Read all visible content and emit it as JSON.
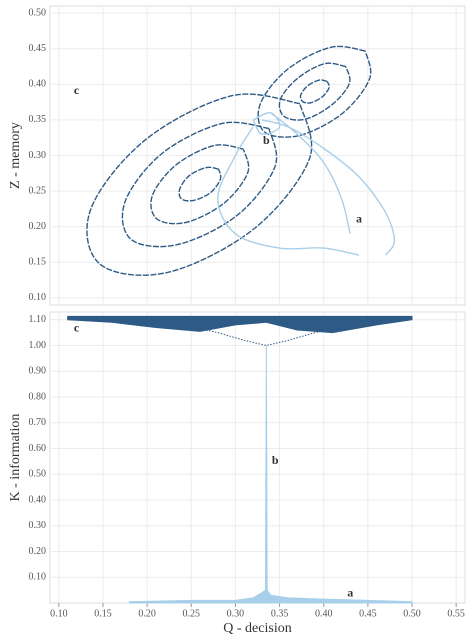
{
  "chart_data": [
    {
      "type": "line",
      "ylabel": "Z - memory",
      "xlim": [
        0.09,
        0.56
      ],
      "ylim": [
        0.09,
        0.51
      ],
      "yticks": [
        {
          "value": 0.1,
          "label": "0.10"
        },
        0.15,
        {
          "value": 0.2,
          "label": "0.20"
        },
        0.25,
        {
          "value": 0.3,
          "label": "0.30"
        },
        0.35,
        {
          "value": 0.4,
          "label": "0.40"
        },
        0.45,
        {
          "value": 0.5,
          "label": "0.50"
        }
      ],
      "grid": true,
      "series": [
        {
          "color": "#2e5b86",
          "style": "dashed",
          "x": [
            0.281,
            0.267,
            0.248,
            0.237,
            0.239,
            0.253,
            0.272,
            0.283,
            0.281,
            null,
            0.309,
            0.276,
            0.233,
            0.206,
            0.211,
            0.244,
            0.287,
            0.314,
            0.309,
            null,
            0.338,
            0.285,
            0.217,
            0.175,
            0.182,
            0.235,
            0.303,
            0.345,
            0.338,
            null,
            0.373,
            0.296,
            0.198,
            0.136,
            0.147,
            0.224,
            0.322,
            0.384,
            0.373,
            null,
            0.404,
            0.395,
            0.382,
            0.374,
            0.376,
            0.385,
            0.398,
            0.406,
            0.404,
            null,
            0.425,
            0.401,
            0.371,
            0.351,
            0.355,
            0.379,
            0.409,
            0.429,
            0.425,
            null,
            0.447,
            0.408,
            0.359,
            0.328,
            0.333,
            0.372,
            0.421,
            0.452,
            0.447
          ],
          "values": [
            0.281,
            0.283,
            0.272,
            0.253,
            0.239,
            0.237,
            0.248,
            0.267,
            0.281,
            null,
            0.309,
            0.314,
            0.287,
            0.244,
            0.211,
            0.206,
            0.233,
            0.276,
            0.309,
            null,
            0.338,
            0.345,
            0.303,
            0.235,
            0.182,
            0.175,
            0.217,
            0.285,
            0.338,
            null,
            0.373,
            0.384,
            0.322,
            0.224,
            0.147,
            0.136,
            0.198,
            0.296,
            0.373,
            null,
            0.404,
            0.406,
            0.398,
            0.385,
            0.376,
            0.374,
            0.382,
            0.395,
            0.404,
            null,
            0.425,
            0.429,
            0.409,
            0.379,
            0.355,
            0.351,
            0.371,
            0.401,
            0.425,
            null,
            0.447,
            0.452,
            0.421,
            0.372,
            0.333,
            0.328,
            0.359,
            0.408,
            0.447
          ]
        },
        {
          "color": "#a8cfe9",
          "style": "solid",
          "x": [
            0.33,
            0.36,
            0.4,
            0.44,
            0.47,
            0.48,
            0.47,
            null,
            0.32,
            0.3,
            0.28,
            0.3,
            0.35,
            0.4,
            0.44,
            null,
            0.34,
            0.37,
            0.4,
            0.42,
            0.43,
            null,
            0.32,
            0.34,
            0.35,
            0.33,
            0.32
          ],
          "values": [
            0.35,
            0.34,
            0.31,
            0.27,
            0.22,
            0.18,
            0.16,
            null,
            0.34,
            0.3,
            0.24,
            0.19,
            0.17,
            0.17,
            0.16,
            null,
            0.36,
            0.33,
            0.29,
            0.24,
            0.19,
            null,
            0.35,
            0.36,
            0.34,
            0.33,
            0.35
          ]
        }
      ],
      "annotations": [
        {
          "text": "c",
          "x": 0.12,
          "y": 0.39
        },
        {
          "text": "b",
          "x": 0.335,
          "y": 0.32
        },
        {
          "text": "a",
          "x": 0.44,
          "y": 0.21
        }
      ]
    },
    {
      "type": "line",
      "xlabel": "Q - decision",
      "ylabel": "K - information",
      "xlim": [
        0.09,
        0.56
      ],
      "ylim": [
        0,
        1.13
      ],
      "xticks": [
        {
          "value": 0.1,
          "label": "0.10"
        },
        0.15,
        {
          "value": 0.2,
          "label": "0.20"
        },
        0.25,
        {
          "value": 0.3,
          "label": "0.30"
        },
        0.35,
        {
          "value": 0.4,
          "label": "0.40"
        },
        0.45,
        {
          "value": 0.5,
          "label": "0.50"
        },
        0.55
      ],
      "yticks": [
        {
          "value": 0.1,
          "label": "0.10"
        },
        {
          "value": 0.2,
          "label": "0.20"
        },
        {
          "value": 0.3,
          "label": "0.30"
        },
        {
          "value": 0.4,
          "label": "0.40"
        },
        {
          "value": 0.5,
          "label": "0.50"
        },
        {
          "value": 0.6,
          "label": "0.60"
        },
        {
          "value": 0.7,
          "label": "0.70"
        },
        {
          "value": 0.8,
          "label": "0.80"
        },
        {
          "value": 0.9,
          "label": "0.90"
        },
        {
          "value": 1.0,
          "label": "1.00"
        },
        {
          "value": 1.1,
          "label": "1.10"
        }
      ],
      "grid": true,
      "series": [
        {
          "color": "#2e5b86",
          "style": "solid",
          "x": [
            0.11,
            0.16,
            0.21,
            0.26,
            0.3,
            0.335,
            0.37,
            0.41,
            0.46,
            0.5
          ],
          "values": [
            1.112,
            1.112,
            1.112,
            1.112,
            1.112,
            1.112,
            1.112,
            1.112,
            1.112,
            1.112
          ]
        },
        {
          "color": "#2e5b86",
          "style": "band",
          "x": [
            0.11,
            0.16,
            0.21,
            0.26,
            0.3,
            0.335,
            0.37,
            0.41,
            0.46,
            0.5
          ],
          "values": [
            1.1,
            1.09,
            1.07,
            1.055,
            1.08,
            1.09,
            1.06,
            1.05,
            1.08,
            1.1
          ]
        },
        {
          "color": "#2e5b86",
          "style": "dotted",
          "x": [
            0.2,
            0.24,
            0.28,
            0.31,
            0.335,
            0.36,
            0.39,
            0.43,
            0.47
          ],
          "values": [
            1.1,
            1.08,
            1.05,
            1.02,
            1.0,
            1.02,
            1.05,
            1.08,
            1.1
          ]
        },
        {
          "color": "#a8cfe9",
          "style": "area",
          "x": [
            0.18,
            0.25,
            0.3,
            0.32,
            0.33,
            0.334,
            0.335,
            0.336,
            0.34,
            0.36,
            0.4,
            0.45,
            0.5
          ],
          "values": [
            0.005,
            0.01,
            0.01,
            0.02,
            0.04,
            0.05,
            1.0,
            0.05,
            0.03,
            0.02,
            0.015,
            0.01,
            0.005
          ]
        }
      ],
      "annotations": [
        {
          "text": "c",
          "x": 0.12,
          "y": 1.065
        },
        {
          "text": "b",
          "x": 0.345,
          "y": 0.55
        },
        {
          "text": "a",
          "x": 0.43,
          "y": 0.035
        }
      ]
    }
  ]
}
